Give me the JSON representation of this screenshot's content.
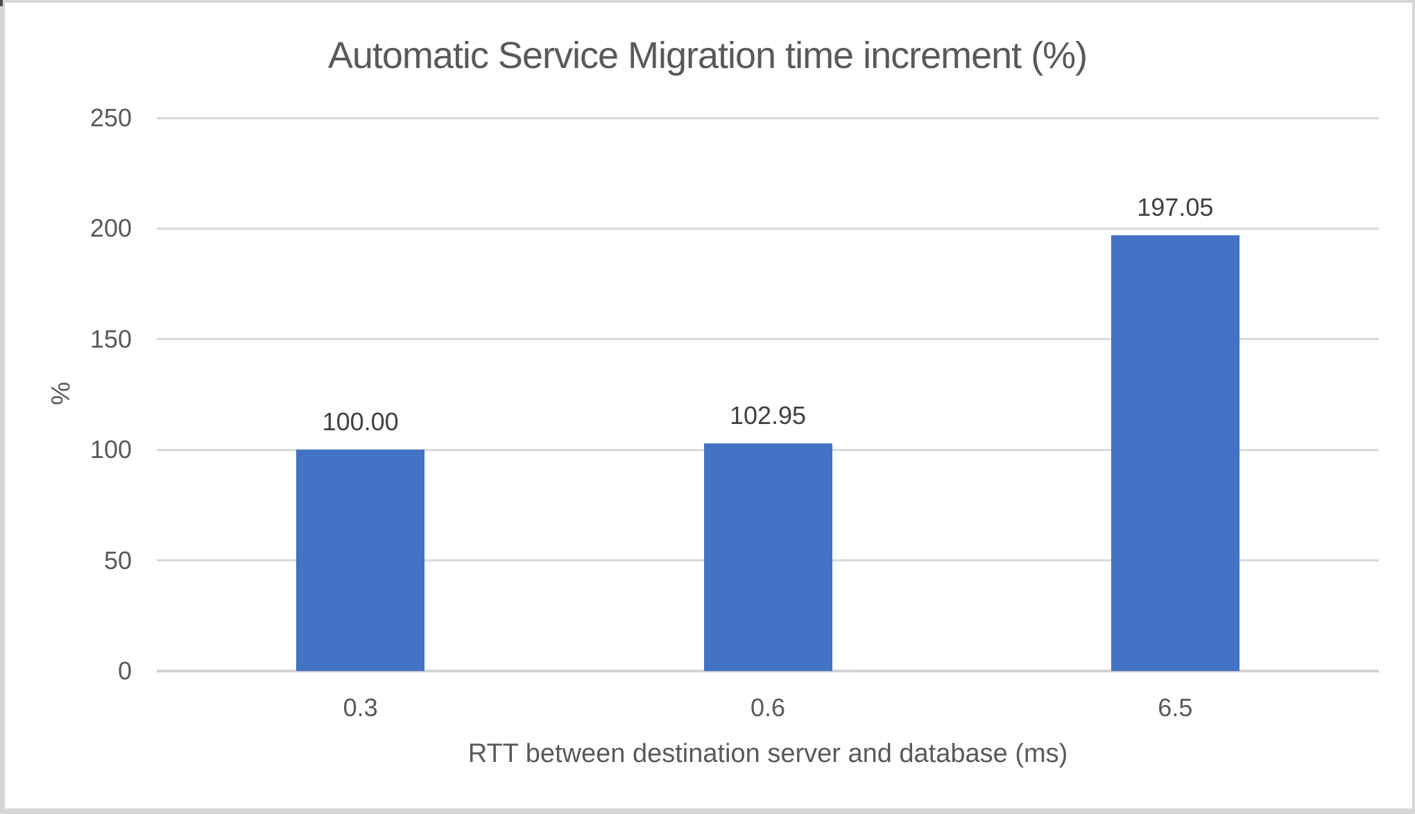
{
  "chart_data": {
    "type": "bar",
    "title": "Automatic Service Migration time increment (%)",
    "categories": [
      "0.3",
      "0.6",
      "6.5"
    ],
    "values": [
      100.0,
      102.95,
      197.05
    ],
    "value_labels": [
      "100.00",
      "102.95",
      "197.05"
    ],
    "xlabel": "RTT between destination server and database (ms)",
    "ylabel": "%",
    "ylim": [
      0,
      250
    ],
    "yticks": [
      0,
      50,
      100,
      150,
      200,
      250
    ],
    "grid": true,
    "legend_position": "none",
    "colors": {
      "bar": "#4472C4",
      "gridline": "#D9D9D9",
      "baseline": "#D2D2D2",
      "axis_text": "#595959",
      "data_label": "#404040",
      "title_text": "#595959",
      "frame_border": "#D6D6D6",
      "background": "#FFFFFF"
    }
  }
}
